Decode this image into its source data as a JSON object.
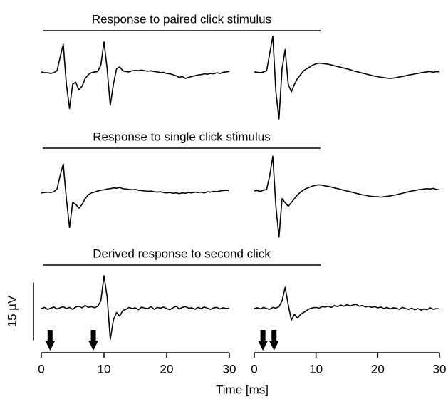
{
  "row_titles": [
    "Response to paired click stimulus",
    "Response to single click stimulus",
    "Derived response to second click"
  ],
  "xlabel": "Time [ms]",
  "scale_bar": {
    "label": "15 µV",
    "value": 15
  },
  "chart_data": [
    {
      "type": "line",
      "xlim": [
        0,
        30
      ],
      "xticks": [
        0,
        10,
        20,
        30
      ],
      "stimuli": [
        1.4,
        8.3
      ],
      "x": [
        0,
        0.5,
        1,
        1.5,
        2,
        2.5,
        3,
        3.5,
        4,
        4.5,
        5,
        5.5,
        6,
        6.5,
        7,
        7.5,
        8,
        8.5,
        9,
        9.5,
        10,
        10.5,
        11,
        11.5,
        12,
        12.5,
        13,
        13.5,
        14,
        14.5,
        15,
        15.5,
        16,
        16.5,
        17,
        17.5,
        18,
        18.5,
        19,
        19.5,
        20,
        20.5,
        21,
        21.5,
        22,
        22.5,
        23,
        23.5,
        24,
        24.5,
        25,
        25.5,
        26,
        26.5,
        27,
        27.5,
        28,
        28.5,
        29,
        29.5,
        30
      ],
      "series": [
        {
          "color": "#000000",
          "values": [
            0.2,
            0,
            0,
            -0.2,
            0,
            0.5,
            4,
            7.4,
            -3,
            -9.3,
            -3,
            -2.5,
            -4.5,
            -3.5,
            -1.5,
            -0.5,
            0,
            0.2,
            0.3,
            2,
            8,
            1,
            -8.5,
            -3,
            1,
            1.5,
            0.5,
            0.3,
            0.2,
            0.5,
            0.6,
            0.5,
            0.7,
            0.5,
            0.4,
            0.5,
            0.3,
            0.2,
            0,
            0.1,
            -0.2,
            -0.3,
            -0.5,
            -0.8,
            -1.2,
            -1,
            -1.5,
            -1.2,
            -1,
            -0.8,
            -0.6,
            -0.5,
            -0.3,
            -0.4,
            -0.2,
            -0.3,
            0,
            -0.2,
            0.1,
            0.2,
            0.3
          ]
        },
        {
          "color": "#000000",
          "values": [
            -0.5,
            -0.4,
            -0.3,
            -0.4,
            -0.2,
            0.5,
            4,
            7,
            -2,
            -9.5,
            -3,
            -3.5,
            -4.5,
            -3.5,
            -2,
            -1,
            -0.5,
            -0.3,
            0,
            0.2,
            0.3,
            0.5,
            0.6,
            0.8,
            0.7,
            0.9,
            0.6,
            0.5,
            0.4,
            0.3,
            0.4,
            0.2,
            0.1,
            0,
            -0.1,
            0,
            -0.2,
            -0.3,
            -0.2,
            -0.4,
            -0.5,
            -0.4,
            -0.6,
            -0.5,
            -0.7,
            -0.5,
            -0.6,
            -0.4,
            -0.5,
            -0.3,
            -0.4,
            -0.3,
            -0.5,
            -0.2,
            -0.3,
            -0.1,
            -0.2,
            0,
            0.1,
            0.2,
            0.1
          ]
        },
        {
          "color": "#000000",
          "values": [
            0,
            0.3,
            -0.2,
            0.1,
            0.4,
            -0.1,
            0.2,
            0.5,
            0,
            0.3,
            -0.2,
            0.4,
            0.6,
            0.2,
            0.8,
            0.3,
            0.5,
            0.2,
            0.6,
            2,
            8.5,
            3,
            -8,
            -3,
            -1,
            -2,
            -0.5,
            -0.2,
            0.3,
            0,
            0.2,
            -0.3,
            0.4,
            0.1,
            0,
            0.5,
            -0.2,
            0.3,
            0.1,
            0.4,
            0,
            -0.3,
            0.2,
            0.6,
            -0.1,
            0.3,
            0.5,
            0.1,
            0.2,
            -0.2,
            0.3,
            0,
            0.4,
            0.1,
            -0.2,
            0.2,
            0.3,
            -0.1,
            0.2,
            0,
            0.1
          ]
        }
      ]
    },
    {
      "type": "line",
      "xlim": [
        0,
        30
      ],
      "xticks": [
        0,
        10,
        20,
        30
      ],
      "stimuli": [
        1.4,
        3.2
      ],
      "x": [
        0,
        0.5,
        1,
        1.5,
        2,
        2.5,
        3,
        3.5,
        4,
        4.5,
        5,
        5.5,
        6,
        6.5,
        7,
        7.5,
        8,
        8.5,
        9,
        9.5,
        10,
        10.5,
        11,
        11.5,
        12,
        12.5,
        13,
        13.5,
        14,
        14.5,
        15,
        15.5,
        16,
        16.5,
        17,
        17.5,
        18,
        18.5,
        19,
        19.5,
        20,
        20.5,
        21,
        21.5,
        22,
        22.5,
        23,
        23.5,
        24,
        24.5,
        25,
        25.5,
        26,
        26.5,
        27,
        27.5,
        28,
        28.5,
        29,
        29.5,
        30
      ],
      "series": [
        {
          "color": "#000000",
          "values": [
            0.2,
            0.1,
            0,
            0.2,
            0.5,
            5,
            9.5,
            -5,
            -12,
            1,
            6,
            -3,
            -5,
            -3,
            -1.5,
            -0.5,
            0.5,
            1,
            1.5,
            2,
            2.3,
            2.5,
            2.4,
            2.3,
            2.2,
            2,
            1.8,
            1.6,
            1.4,
            1.2,
            1,
            0.8,
            0.5,
            0.3,
            0.1,
            -0.1,
            -0.3,
            -0.5,
            -0.7,
            -0.9,
            -1,
            -1.2,
            -1.3,
            -1.4,
            -1.5,
            -1.4,
            -1.3,
            -1.1,
            -1,
            -0.8,
            -0.6,
            -0.5,
            -0.3,
            -0.2,
            0,
            0.1,
            0.2,
            0.3,
            0.1,
            0.3,
            0.2
          ]
        },
        {
          "color": "#000000",
          "values": [
            0,
            0.1,
            -0.1,
            0.2,
            0.4,
            4,
            9,
            -4,
            -12,
            -2,
            -3,
            -4,
            -3,
            -2,
            -1,
            -0.3,
            0.3,
            0.7,
            1,
            1.3,
            1.5,
            1.6,
            1.5,
            1.3,
            1.2,
            1,
            0.8,
            0.6,
            0.4,
            0.2,
            0,
            -0.2,
            -0.4,
            -0.6,
            -0.8,
            -1,
            -1.1,
            -1.3,
            -1.4,
            -1.5,
            -1.5,
            -1.6,
            -1.5,
            -1.4,
            -1.3,
            -1.1,
            -1,
            -0.8,
            -0.6,
            -0.4,
            -0.2,
            0,
            0.1,
            0.3,
            0.4,
            0.5,
            0.6,
            0.5,
            0.7,
            0.4,
            0.3
          ]
        },
        {
          "color": "#000000",
          "values": [
            0,
            0.2,
            -0.1,
            0.3,
            0,
            -0.2,
            0.3,
            0.1,
            0.5,
            2,
            5.5,
            1,
            -3,
            -1.5,
            -2.5,
            -1.5,
            -1,
            -0.5,
            0,
            0.2,
            0.3,
            0.1,
            0.5,
            0.4,
            0.6,
            0.3,
            0.8,
            0.5,
            0.9,
            0.6,
            1,
            0.7,
            0.9,
            1.1,
            0.6,
            0.8,
            0.4,
            0.6,
            0.3,
            0.5,
            0.2,
            0.4,
            0,
            0.3,
            -0.1,
            0.2,
            0.1,
            -0.2,
            0.3,
            0,
            -0.2,
            0.1,
            -0.3,
            0,
            -0.4,
            -0.1,
            -0.3,
            0.2,
            -0.2,
            0,
            -0.1
          ]
        }
      ]
    }
  ]
}
